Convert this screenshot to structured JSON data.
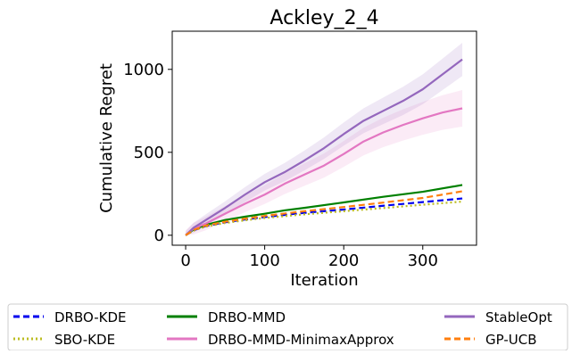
{
  "chart_data": {
    "type": "line",
    "title": "Ackley_2_4",
    "xlabel": "Iteration",
    "ylabel": "Cumulative Regret",
    "xlim": [
      -17,
      368
    ],
    "ylim": [
      -60,
      1230
    ],
    "xticks": [
      0,
      100,
      200,
      300
    ],
    "yticks": [
      0,
      500,
      1000
    ],
    "grid": false,
    "legend_position": "bottom (outside axes, 3 columns)",
    "series": [
      {
        "name": "DRBO-KDE",
        "color": "#0000ee",
        "style": "dashed",
        "x": [
          0,
          10,
          25,
          50,
          75,
          100,
          150,
          200,
          250,
          300,
          350
        ],
        "values": [
          0,
          30,
          55,
          78,
          95,
          110,
          135,
          155,
          178,
          200,
          222
        ]
      },
      {
        "name": "SBO-KDE",
        "color": "#bcbd22",
        "style": "dotted",
        "x": [
          0,
          10,
          25,
          50,
          75,
          100,
          150,
          200,
          250,
          300,
          350
        ],
        "values": [
          0,
          28,
          52,
          74,
          90,
          104,
          126,
          145,
          164,
          184,
          203
        ]
      },
      {
        "name": "DRBO-MMD",
        "color": "#008000",
        "style": "solid",
        "x": [
          0,
          10,
          25,
          50,
          75,
          100,
          125,
          150,
          200,
          250,
          300,
          350
        ],
        "values": [
          0,
          35,
          62,
          92,
          112,
          130,
          150,
          165,
          198,
          232,
          262,
          303
        ]
      },
      {
        "name": "DRBO-MMD-MinimaxApprox",
        "color": "#e377c2",
        "style": "solid",
        "band": [
          30,
          110
        ],
        "x": [
          0,
          10,
          25,
          50,
          75,
          100,
          125,
          150,
          175,
          200,
          225,
          250,
          275,
          300,
          325,
          350
        ],
        "values": [
          0,
          40,
          70,
          130,
          190,
          245,
          310,
          365,
          420,
          490,
          565,
          620,
          665,
          705,
          740,
          765
        ]
      },
      {
        "name": "StableOpt",
        "color": "#9467bd",
        "style": "solid",
        "band": [
          25,
          100
        ],
        "x": [
          0,
          10,
          25,
          50,
          75,
          100,
          125,
          150,
          175,
          200,
          225,
          250,
          275,
          300,
          325,
          350
        ],
        "values": [
          0,
          45,
          90,
          165,
          245,
          320,
          380,
          450,
          525,
          610,
          690,
          750,
          810,
          880,
          970,
          1060
        ]
      },
      {
        "name": "GP-UCB",
        "color": "#ff7f0e",
        "style": "dashed",
        "x": [
          0,
          10,
          25,
          50,
          75,
          100,
          150,
          200,
          250,
          300,
          350
        ],
        "values": [
          0,
          32,
          58,
          82,
          100,
          117,
          145,
          170,
          197,
          225,
          265
        ]
      }
    ],
    "legend_order": [
      "DRBO-KDE",
      "DRBO-MMD",
      "StableOpt",
      "SBO-KDE",
      "DRBO-MMD-MinimaxApprox",
      "GP-UCB"
    ]
  }
}
